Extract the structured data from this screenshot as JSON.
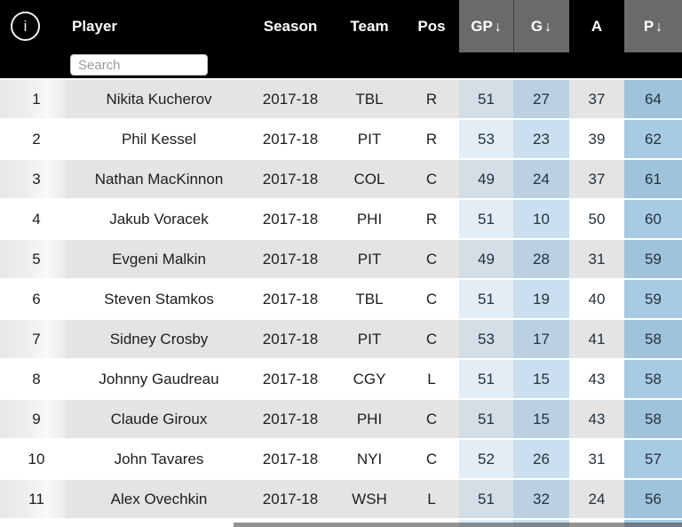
{
  "search": {
    "placeholder": "Search"
  },
  "icons": {
    "info_glyph": "i",
    "sort_desc": "↓"
  },
  "colors": {
    "header_bg": "#000000",
    "sorted_column_header_bg": "#6a6a6a",
    "header_text": "#ffffff",
    "row_stripe_bg": "#e4e4e4",
    "row_bg": "#ffffff",
    "gp_tint": "#e2edf6",
    "g_tint": "#cadff0",
    "p_tint": "#a8cbe4",
    "gp_tint_striped": "#d3dee6",
    "g_tint_striped": "#b9d1e2",
    "p_tint_striped": "#a0c3dc",
    "text": "#1c1c1c"
  },
  "table": {
    "columns": [
      {
        "key": "rank",
        "label": "",
        "sorted": false
      },
      {
        "key": "player",
        "label": "Player",
        "sorted": false
      },
      {
        "key": "season",
        "label": "Season",
        "sorted": false
      },
      {
        "key": "team",
        "label": "Team",
        "sorted": false
      },
      {
        "key": "pos",
        "label": "Pos",
        "sorted": false
      },
      {
        "key": "gp",
        "label": "GP",
        "sorted": true,
        "sort_arrow": "↓"
      },
      {
        "key": "g",
        "label": "G",
        "sorted": true,
        "sort_arrow": "↓"
      },
      {
        "key": "a",
        "label": "A",
        "sorted": false
      },
      {
        "key": "p",
        "label": "P",
        "sorted": true,
        "sort_arrow": "↓"
      }
    ],
    "rows": [
      {
        "rank": "1",
        "player": "Nikita Kucherov",
        "season": "2017-18",
        "team": "TBL",
        "pos": "R",
        "gp": "51",
        "g": "27",
        "a": "37",
        "p": "64"
      },
      {
        "rank": "2",
        "player": "Phil Kessel",
        "season": "2017-18",
        "team": "PIT",
        "pos": "R",
        "gp": "53",
        "g": "23",
        "a": "39",
        "p": "62"
      },
      {
        "rank": "3",
        "player": "Nathan MacKinnon",
        "season": "2017-18",
        "team": "COL",
        "pos": "C",
        "gp": "49",
        "g": "24",
        "a": "37",
        "p": "61"
      },
      {
        "rank": "4",
        "player": "Jakub Voracek",
        "season": "2017-18",
        "team": "PHI",
        "pos": "R",
        "gp": "51",
        "g": "10",
        "a": "50",
        "p": "60"
      },
      {
        "rank": "5",
        "player": "Evgeni Malkin",
        "season": "2017-18",
        "team": "PIT",
        "pos": "C",
        "gp": "49",
        "g": "28",
        "a": "31",
        "p": "59"
      },
      {
        "rank": "6",
        "player": "Steven Stamkos",
        "season": "2017-18",
        "team": "TBL",
        "pos": "C",
        "gp": "51",
        "g": "19",
        "a": "40",
        "p": "59"
      },
      {
        "rank": "7",
        "player": "Sidney Crosby",
        "season": "2017-18",
        "team": "PIT",
        "pos": "C",
        "gp": "53",
        "g": "17",
        "a": "41",
        "p": "58"
      },
      {
        "rank": "8",
        "player": "Johnny Gaudreau",
        "season": "2017-18",
        "team": "CGY",
        "pos": "L",
        "gp": "51",
        "g": "15",
        "a": "43",
        "p": "58"
      },
      {
        "rank": "9",
        "player": "Claude Giroux",
        "season": "2017-18",
        "team": "PHI",
        "pos": "C",
        "gp": "51",
        "g": "15",
        "a": "43",
        "p": "58"
      },
      {
        "rank": "10",
        "player": "John Tavares",
        "season": "2017-18",
        "team": "NYI",
        "pos": "C",
        "gp": "52",
        "g": "26",
        "a": "31",
        "p": "57"
      },
      {
        "rank": "11",
        "player": "Alex Ovechkin",
        "season": "2017-18",
        "team": "WSH",
        "pos": "L",
        "gp": "51",
        "g": "32",
        "a": "24",
        "p": "56"
      }
    ]
  }
}
